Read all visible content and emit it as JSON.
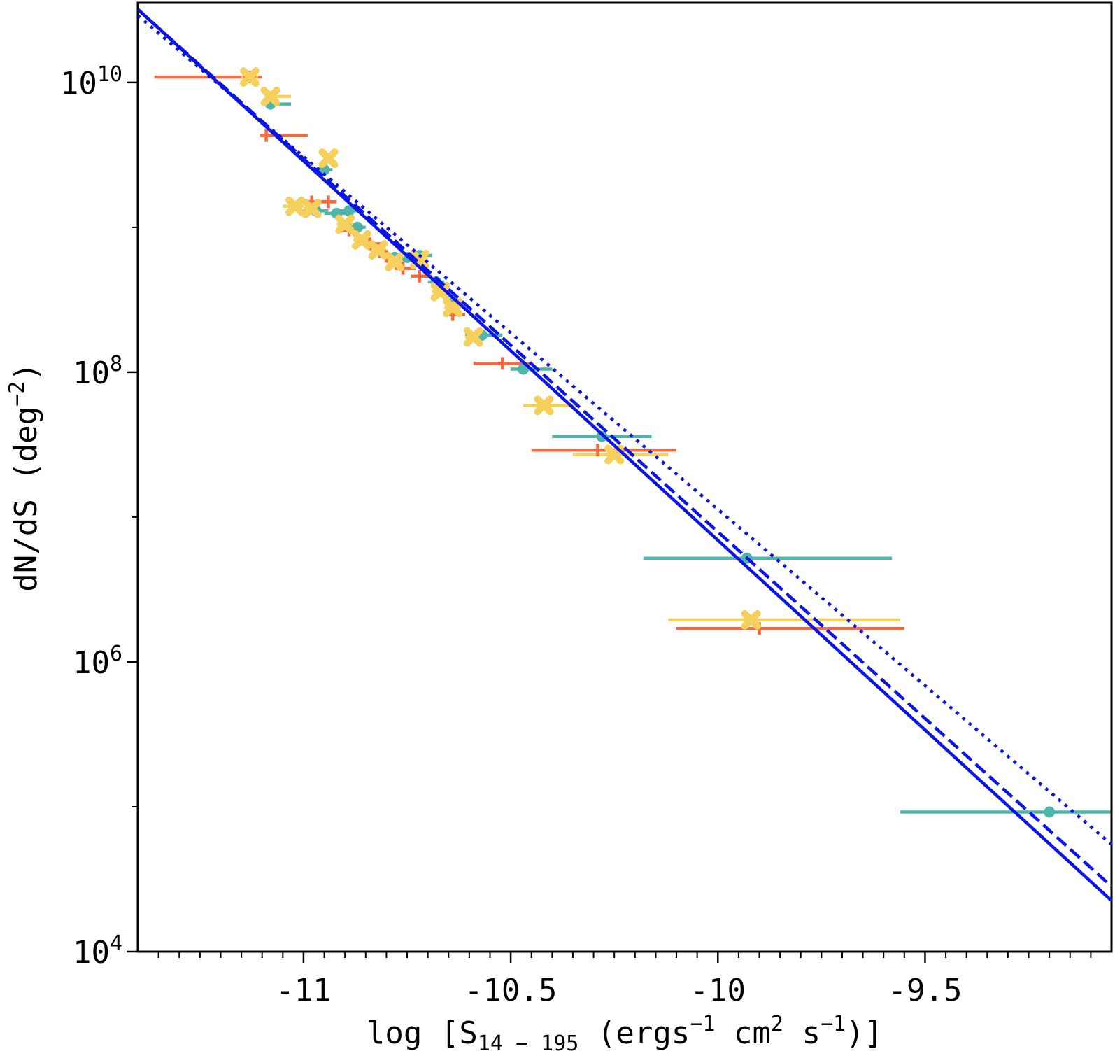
{
  "chart_data": {
    "type": "scatter",
    "title": "",
    "xlabel": "log [S_{14-195} (ergs^{-1} cm^2 s^{-1})]",
    "xlabel_parts": {
      "pre": "log [S",
      "sub": "14 − 195",
      "mid1": "  (ergs",
      "sup1": "−1",
      "mid2": " cm",
      "sup2": "2",
      "mid3": " s",
      "sup3": "−1",
      "post": ")]"
    },
    "ylabel": "dN/dS (deg^{-2})",
    "ylabel_parts": {
      "pre": "dN/dS  (deg",
      "sup": "−2",
      "post": ")"
    },
    "xlim": [
      -11.4,
      -9.05
    ],
    "ylim_log10": [
      4,
      10.55
    ],
    "yscale": "log",
    "grid": false,
    "x_major_ticks": [
      -11,
      -10.5,
      -10,
      -9.5
    ],
    "x_tick_labels": [
      "-11",
      "-10.5",
      "-10",
      "-9.5"
    ],
    "x_minor_ticks": [
      -11.35,
      -11.3,
      -11.25,
      -11.2,
      -11.15,
      -11.1,
      -11.05,
      -10.95,
      -10.9,
      -10.85,
      -10.8,
      -10.75,
      -10.7,
      -10.65,
      -10.6,
      -10.55,
      -10.45,
      -10.4,
      -10.35,
      -10.3,
      -10.25,
      -10.2,
      -10.15,
      -10.1,
      -10.05,
      -9.95,
      -9.9,
      -9.85,
      -9.8,
      -9.75,
      -9.7,
      -9.65,
      -9.6,
      -9.55,
      -9.45,
      -9.4,
      -9.35,
      -9.3,
      -9.25,
      -9.2,
      -9.15,
      -9.1
    ],
    "y_major_ticks": [
      4,
      6,
      8,
      10
    ],
    "y_tick_labels": [
      {
        "base": "10",
        "exp": "4"
      },
      {
        "base": "10",
        "exp": "6"
      },
      {
        "base": "10",
        "exp": "8"
      },
      {
        "base": "10",
        "exp": "10"
      }
    ],
    "y_minor_ticks": [
      5,
      7,
      9
    ],
    "series": [
      {
        "marker": "circle",
        "color": "#4DB6A8",
        "points": [
          {
            "x": -11.08,
            "y": 7100000000.0,
            "xerr": [
              0.02,
              0.05
            ]
          },
          {
            "x": -10.95,
            "y": 2500000000.0,
            "xerr": [
              0.02,
              0.02
            ]
          },
          {
            "x": -10.97,
            "y": 1300000000.0,
            "xerr": [
              0.03,
              0.03
            ]
          },
          {
            "x": -10.92,
            "y": 1250000000.0,
            "xerr": [
              0.03,
              0.02
            ]
          },
          {
            "x": -10.89,
            "y": 1300000000.0,
            "xerr": [
              0.02,
              0.02
            ]
          },
          {
            "x": -10.87,
            "y": 1000000000.0,
            "xerr": [
              0.03,
              0.02
            ]
          },
          {
            "x": -10.78,
            "y": 620000000.0,
            "xerr": [
              0.02,
              0.02
            ]
          },
          {
            "x": -10.75,
            "y": 620000000.0,
            "xerr": [
              0.03,
              0.02
            ]
          },
          {
            "x": -10.72,
            "y": 640000000.0,
            "xerr": [
              0.02,
              0.03
            ]
          },
          {
            "x": -10.68,
            "y": 420000000.0,
            "xerr": [
              0.02,
              0.02
            ]
          },
          {
            "x": -10.64,
            "y": 300000000.0,
            "xerr": [
              0.02,
              0.03
            ]
          },
          {
            "x": -10.57,
            "y": 180000000.0,
            "xerr": [
              0.04,
              0.05
            ]
          },
          {
            "x": -10.47,
            "y": 105000000.0,
            "xerr": [
              0.03,
              0.07
            ]
          },
          {
            "x": -10.28,
            "y": 36000000.0,
            "xerr": [
              0.12,
              0.12
            ]
          },
          {
            "x": -9.93,
            "y": 5200000.0,
            "xerr": [
              0.25,
              0.35
            ]
          },
          {
            "x": -9.2,
            "y": 92000.0,
            "xerr": [
              0.36,
              0.15
            ]
          }
        ]
      },
      {
        "marker": "plus",
        "color": "#F26B41",
        "points": [
          {
            "x": -11.13,
            "y": 10900000000.0,
            "xerr": [
              0.23,
              0.03
            ]
          },
          {
            "x": -11.09,
            "y": 4300000000.0,
            "xerr": [
              0.01,
              0.1
            ]
          },
          {
            "x": -10.98,
            "y": 1500000000.0,
            "xerr": [
              0.02,
              0.04
            ]
          },
          {
            "x": -10.94,
            "y": 1500000000.0,
            "xerr": [
              0.03,
              0.02
            ]
          },
          {
            "x": -10.89,
            "y": 960000000.0,
            "xerr": [
              0.02,
              0.03
            ]
          },
          {
            "x": -10.84,
            "y": 770000000.0,
            "xerr": [
              0.02,
              0.03
            ]
          },
          {
            "x": -10.8,
            "y": 630000000.0,
            "xerr": [
              0.02,
              0.03
            ]
          },
          {
            "x": -10.76,
            "y": 520000000.0,
            "xerr": [
              0.02,
              0.03
            ]
          },
          {
            "x": -10.72,
            "y": 460000000.0,
            "xerr": [
              0.02,
              0.03
            ]
          },
          {
            "x": -10.64,
            "y": 250000000.0,
            "xerr": [
              0.02,
              0.03
            ]
          },
          {
            "x": -10.52,
            "y": 115000000.0,
            "xerr": [
              0.07,
              0.07
            ]
          },
          {
            "x": -10.29,
            "y": 29000000.0,
            "xerr": [
              0.16,
              0.19
            ]
          },
          {
            "x": -9.9,
            "y": 1700000.0,
            "xerr": [
              0.2,
              0.35
            ]
          }
        ]
      },
      {
        "marker": "x",
        "color": "#F5D05C",
        "points": [
          {
            "x": -11.13,
            "y": 10900000000.0,
            "xerr": [
              0.02,
              0.02
            ]
          },
          {
            "x": -11.08,
            "y": 8000000000.0,
            "xerr": [
              0.01,
              0.05
            ]
          },
          {
            "x": -10.94,
            "y": 3000000000.0,
            "xerr": [
              0.01,
              0.01
            ]
          },
          {
            "x": -11.02,
            "y": 1400000000.0,
            "xerr": [
              0.03,
              0.02
            ]
          },
          {
            "x": -10.98,
            "y": 1350000000.0,
            "xerr": [
              0.02,
              0.02
            ]
          },
          {
            "x": -10.9,
            "y": 1050000000.0,
            "xerr": [
              0.02,
              0.02
            ]
          },
          {
            "x": -10.86,
            "y": 820000000.0,
            "xerr": [
              0.02,
              0.02
            ]
          },
          {
            "x": -10.82,
            "y": 700000000.0,
            "xerr": [
              0.02,
              0.02
            ]
          },
          {
            "x": -10.78,
            "y": 580000000.0,
            "xerr": [
              0.02,
              0.02
            ]
          },
          {
            "x": -10.72,
            "y": 600000000.0,
            "xerr": [
              0.02,
              0.02
            ]
          },
          {
            "x": -10.67,
            "y": 360000000.0,
            "xerr": [
              0.02,
              0.02
            ]
          },
          {
            "x": -10.64,
            "y": 280000000.0,
            "xerr": [
              0.02,
              0.02
            ]
          },
          {
            "x": -10.59,
            "y": 175000000.0,
            "xerr": [
              0.02,
              0.03
            ]
          },
          {
            "x": -10.42,
            "y": 59000000.0,
            "xerr": [
              0.05,
              0.08
            ]
          },
          {
            "x": -10.25,
            "y": 27000000.0,
            "xerr": [
              0.1,
              0.13
            ]
          },
          {
            "x": -9.92,
            "y": 1950000.0,
            "xerr": [
              0.2,
              0.36
            ]
          }
        ]
      }
    ],
    "fit_lines": [
      {
        "style": "solid",
        "color": "#0A14E6",
        "x": [
          -11.4,
          -9.05
        ],
        "y": [
          32000000000.0,
          22500.0
        ]
      },
      {
        "style": "dashed",
        "color": "#0A14E6",
        "x": [
          -11.4,
          -9.05
        ],
        "y": [
          32000000000.0,
          28200.0
        ]
      },
      {
        "style": "dotted",
        "color": "#0A14E6",
        "x": [
          -11.4,
          -9.05
        ],
        "y": [
          29000000000.0,
          55000.0
        ]
      }
    ]
  }
}
